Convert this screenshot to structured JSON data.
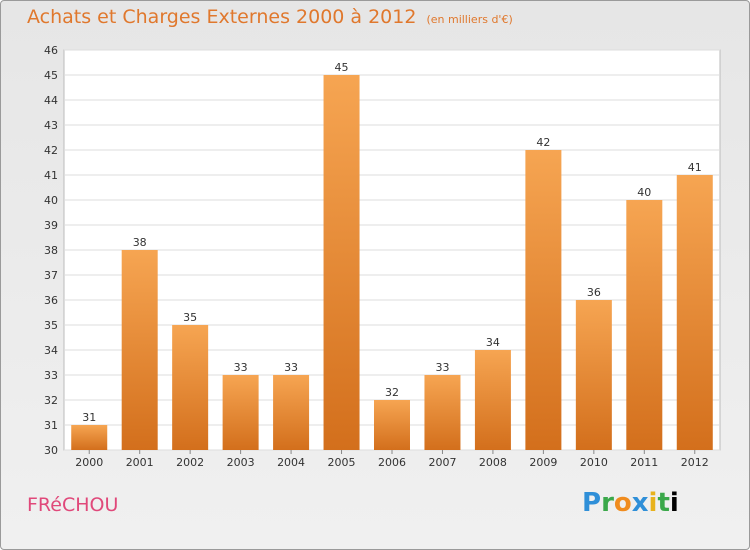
{
  "chart_data": {
    "type": "bar",
    "title": "Achats et Charges Externes 2000 à 2012",
    "subtitle": "(en milliers d'€)",
    "categories": [
      "2000",
      "2001",
      "2002",
      "2003",
      "2004",
      "2005",
      "2006",
      "2007",
      "2008",
      "2009",
      "2010",
      "2011",
      "2012"
    ],
    "values": [
      31,
      38,
      35,
      33,
      33,
      45,
      32,
      33,
      34,
      42,
      36,
      40,
      41
    ],
    "ylim": [
      30,
      46
    ],
    "yticks": [
      30,
      31,
      32,
      33,
      34,
      35,
      36,
      37,
      38,
      39,
      40,
      41,
      42,
      43,
      44,
      45,
      46
    ],
    "grid": true,
    "colors": {
      "bar_light": "#f6a552",
      "bar_dark": "#d36f1c",
      "title": "#e0782d",
      "commune": "#e0487a"
    }
  },
  "commune": "FRéCHOU",
  "brand": {
    "letters": [
      "P",
      "r",
      "o",
      "x",
      "i",
      "t",
      "i"
    ]
  }
}
